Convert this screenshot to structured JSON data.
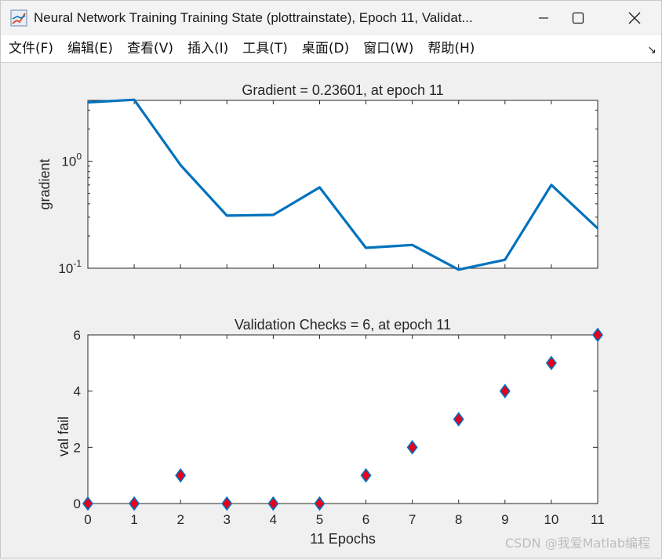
{
  "window": {
    "title": "Neural Network Training Training State (plottrainstate), Epoch 11, Validat...",
    "controls": [
      "minimize",
      "maximize",
      "close"
    ]
  },
  "menu": {
    "items": [
      "文件(F)",
      "编辑(E)",
      "查看(V)",
      "插入(I)",
      "工具(T)",
      "桌面(D)",
      "窗口(W)",
      "帮助(H)"
    ],
    "dock_glyph": "↘"
  },
  "watermark": "CSDN @我爱Matlab编程",
  "colors": {
    "line": "#0072bd",
    "marker_face": "#e8001c",
    "marker_edge": "#0072bd"
  },
  "chart_data": [
    {
      "type": "line",
      "title": "Gradient = 0.23601, at epoch 11",
      "xlabel": "",
      "ylabel": "gradient",
      "yscale": "log",
      "ylim": [
        0.1,
        3.7
      ],
      "xlim": [
        0,
        11
      ],
      "x": [
        0,
        1,
        2,
        3,
        4,
        5,
        6,
        7,
        8,
        9,
        10,
        11
      ],
      "values": [
        3.55,
        3.75,
        0.92,
        0.31,
        0.315,
        0.57,
        0.155,
        0.165,
        0.097,
        0.12,
        0.6,
        0.236
      ],
      "yticks": [
        {
          "value": 0.1,
          "base": "10",
          "exp": "-1"
        },
        {
          "value": 1,
          "base": "10",
          "exp": "0"
        }
      ],
      "grid": false
    },
    {
      "type": "scatter",
      "title": "Validation Checks = 6, at epoch 11",
      "xlabel": "11 Epochs",
      "ylabel": "val fail",
      "ylim": [
        0,
        6
      ],
      "xlim": [
        0,
        11
      ],
      "x": [
        0,
        1,
        2,
        3,
        4,
        5,
        6,
        7,
        8,
        9,
        10,
        11
      ],
      "values": [
        0,
        0,
        1,
        0,
        0,
        0,
        1,
        2,
        3,
        4,
        5,
        6
      ],
      "yticks": [
        "0",
        "2",
        "4",
        "6"
      ],
      "xticks": [
        "0",
        "1",
        "2",
        "3",
        "4",
        "5",
        "6",
        "7",
        "8",
        "9",
        "10",
        "11"
      ],
      "grid": false
    }
  ]
}
